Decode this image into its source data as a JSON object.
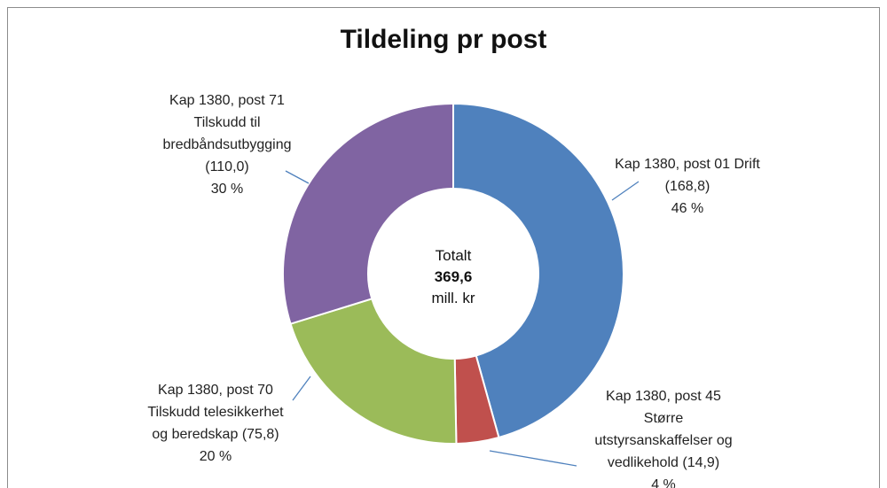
{
  "chart_data": {
    "type": "donut",
    "title": "Tildeling pr post",
    "categories": [
      "Kap 1380, post 01 Drift",
      "Kap 1380, post 45\nStørre\nutstyrsanskaffelser og\nvedlikehold",
      "Kap 1380, post 70\nTilskudd telesikkerhet\nog beredskap",
      "Kap 1380, post 71\nTilskudd til\nbredbåndsutbygging"
    ],
    "values": [
      168.8,
      14.9,
      75.8,
      110.0
    ],
    "value_labels": [
      "(168,8)",
      "(14,9)",
      "(75,8)",
      "(110,0)"
    ],
    "percents": [
      46,
      4,
      20,
      30
    ],
    "percent_labels": [
      "46 %",
      "4 %",
      "20 %",
      "30 %"
    ],
    "colors": [
      "#4f81bd",
      "#c0504d",
      "#9bbb59",
      "#8064a2"
    ],
    "center": {
      "label": "Totalt",
      "total": {
        "value": 369.6,
        "label": "369,6"
      },
      "unit": "mill. kr"
    }
  }
}
